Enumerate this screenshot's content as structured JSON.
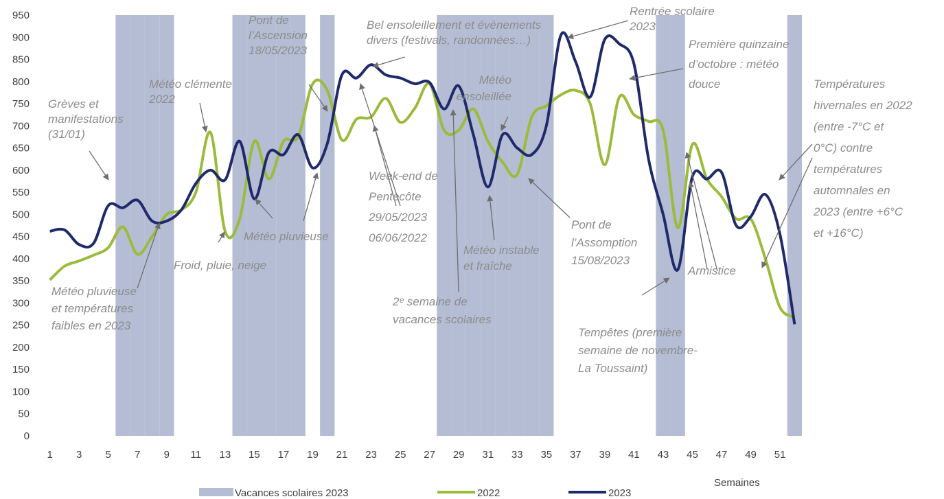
{
  "chart_data": {
    "type": "line",
    "x": [
      1,
      2,
      3,
      4,
      5,
      6,
      7,
      8,
      9,
      10,
      11,
      12,
      13,
      14,
      15,
      16,
      17,
      18,
      19,
      20,
      21,
      22,
      23,
      24,
      25,
      26,
      27,
      28,
      29,
      30,
      31,
      32,
      33,
      34,
      35,
      36,
      37,
      38,
      39,
      40,
      41,
      42,
      43,
      44,
      45,
      46,
      47,
      48,
      49,
      50,
      51,
      52
    ],
    "xlim": [
      0.5,
      52.5
    ],
    "xticks": [
      1,
      3,
      5,
      7,
      9,
      11,
      13,
      15,
      17,
      19,
      21,
      23,
      25,
      27,
      29,
      31,
      33,
      35,
      37,
      39,
      41,
      43,
      45,
      47,
      49,
      51
    ],
    "xlabel": "Semaines",
    "ylim": [
      0,
      950
    ],
    "yticks": [
      0,
      50,
      100,
      150,
      200,
      250,
      300,
      350,
      400,
      450,
      500,
      550,
      600,
      650,
      700,
      750,
      800,
      850,
      900,
      950
    ],
    "grid": false,
    "legend": "bottom",
    "series": [
      {
        "name": "Vacances scolaires 2023",
        "type": "bar",
        "color": "#b4bdd4",
        "values": [
          0,
          0,
          0,
          0,
          0,
          950,
          950,
          950,
          950,
          0,
          0,
          0,
          0,
          950,
          950,
          950,
          950,
          950,
          0,
          950,
          0,
          0,
          0,
          0,
          0,
          0,
          0,
          950,
          950,
          950,
          950,
          950,
          950,
          950,
          950,
          0,
          0,
          0,
          0,
          0,
          0,
          0,
          950,
          950,
          0,
          0,
          0,
          0,
          0,
          0,
          0,
          950
        ]
      },
      {
        "name": "2022",
        "type": "line",
        "color": "#9bbb3b",
        "values": [
          352,
          383,
          395,
          408,
          425,
          472,
          410,
          450,
          500,
          510,
          550,
          685,
          462,
          490,
          665,
          580,
          665,
          675,
          795,
          780,
          668,
          715,
          720,
          762,
          708,
          740,
          795,
          690,
          690,
          738,
          665,
          618,
          590,
          720,
          745,
          770,
          780,
          750,
          612,
          765,
          725,
          710,
          690,
          470,
          658,
          580,
          540,
          490,
          490,
          400,
          290,
          268
        ]
      },
      {
        "name": "2023",
        "type": "line",
        "color": "#1f2a6b",
        "values": [
          462,
          465,
          432,
          435,
          520,
          515,
          532,
          485,
          485,
          510,
          570,
          600,
          578,
          665,
          535,
          640,
          635,
          680,
          605,
          660,
          815,
          808,
          838,
          815,
          808,
          795,
          798,
          738,
          790,
          680,
          562,
          680,
          650,
          635,
          700,
          905,
          845,
          765,
          895,
          885,
          840,
          625,
          500,
          375,
          585,
          580,
          595,
          475,
          495,
          545,
          455,
          252
        ]
      }
    ],
    "annotations": [
      "Grèves et\nmanifestations\n(31/01)",
      "Météo clémente\n2022",
      "Pont de\nl’Ascension\n18/05/2023",
      "Bel ensoleillement et événements\ndivers (festivals, randonnées…)",
      "Rentrée scolaire\n2023",
      "Première quinzaine\nd’octobre : météo\ndouce",
      "Températures\nhivernales en 2022\n(entre -7°C et\n0°C) contre\ntempératures\nautomnales en\n2023 (entre +6°C\net +16°C)",
      "Météo\nensoleillée",
      "Week-end de\nPentecôte\n29/05/2023\n06/06/2022",
      "Météo pluvieuse",
      "Froid, pluie, neige",
      "Météo pluvieuse\net températures\nfaibles en 2023",
      "Météo instable\net fraîche",
      "Pont de\nl’Assomption\n15/08/2023",
      "2ᵉ semaine de\nvacances scolaires",
      "Tempêtes (première\nsemaine de novembre-\nLa Toussaint)",
      "Armistice"
    ]
  }
}
